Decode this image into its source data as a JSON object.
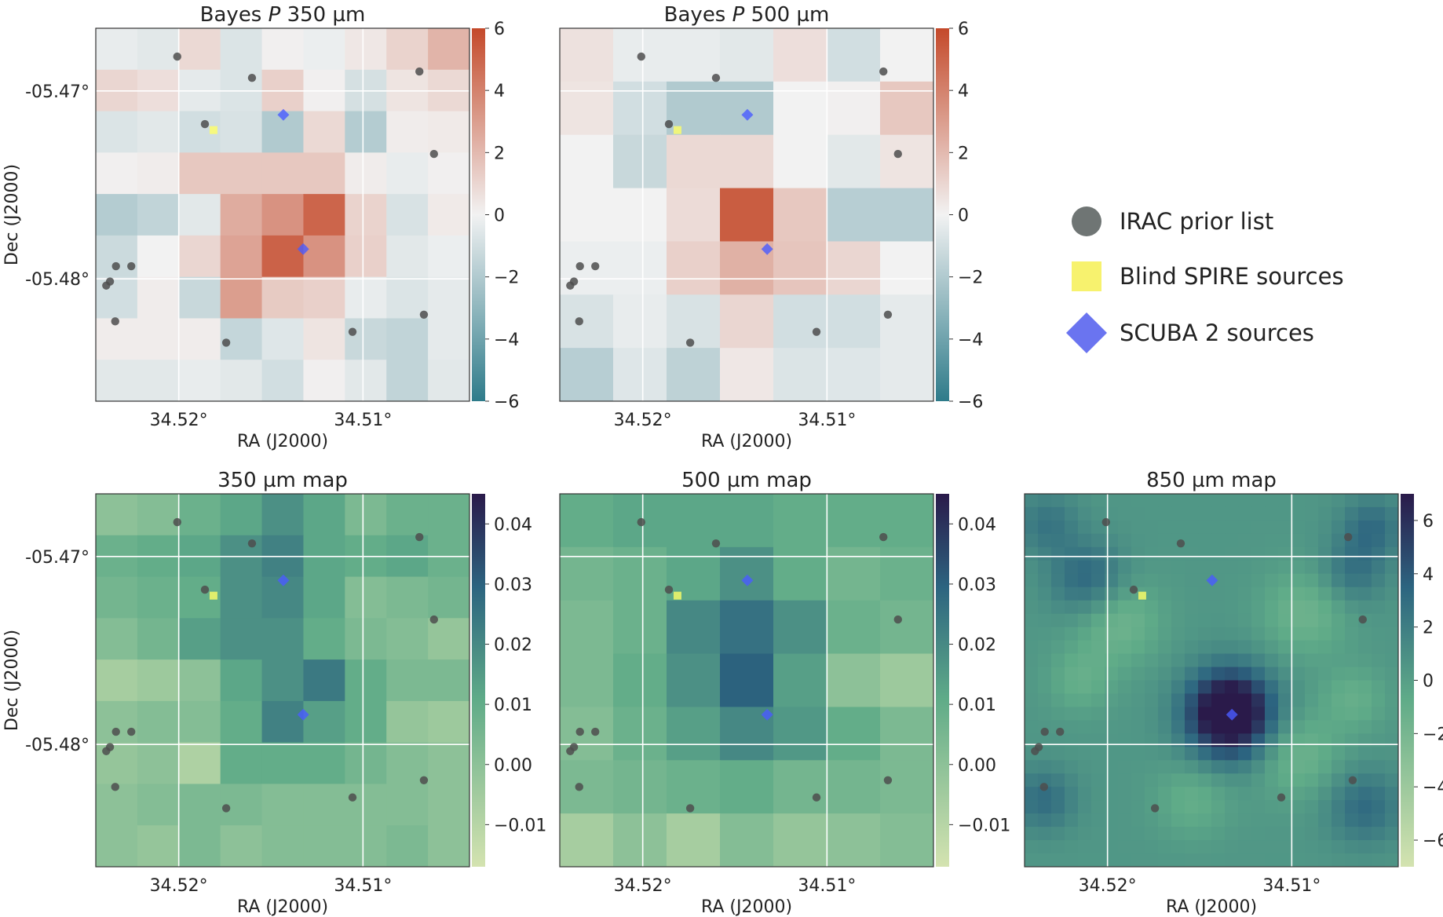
{
  "figure": {
    "colors": {
      "bayes_low": "#2e7b8a",
      "bayes_mid": "#f2f2f2",
      "bayes_high": "#c4492a",
      "map_low": "#d4e3b0",
      "map_mid": "#5fab88",
      "map_high": "#2a1a4a",
      "irac": "#4d4d4d",
      "spire": "#ffff66",
      "scuba": "#4a5bff"
    }
  },
  "legend": {
    "items": [
      {
        "label": "IRAC prior list",
        "marker": "circle",
        "color": "#6f7574"
      },
      {
        "label": "Blind SPIRE sources",
        "marker": "square",
        "color": "#f7f26e"
      },
      {
        "label": "SCUBA 2 sources",
        "marker": "diamond",
        "color": "#6a74f0"
      }
    ]
  },
  "chart_data": [
    {
      "type": "heatmap",
      "title_prefix": "Bayes ",
      "title_italic": "P",
      "title_suffix": " 350 µm",
      "xlabel": "RA (J2000)",
      "ylabel": "Dec (J2000)",
      "xticks": [
        "34.52°",
        "34.51°"
      ],
      "yticks": [
        "-05.47°",
        "-05.48°"
      ],
      "colormap": "bayes",
      "color_range": [
        -6,
        6
      ],
      "colorbar_ticks": [
        "6",
        "4",
        "2",
        "0",
        "−2",
        "−4",
        "−6"
      ],
      "grid": [
        [
          -0.3,
          -0.5,
          0.9,
          -0.7,
          0.1,
          -0.2,
          0.4,
          1.1,
          2.2
        ],
        [
          1.0,
          0.7,
          -0.4,
          -0.7,
          1.2,
          0.1,
          -0.9,
          0.5,
          0.9
        ],
        [
          -0.7,
          -0.5,
          -1.0,
          -0.8,
          -2.0,
          0.9,
          -1.9,
          0.2,
          0.3
        ],
        [
          0.1,
          0.2,
          1.5,
          1.5,
          1.5,
          1.5,
          0.2,
          -0.3,
          0.1
        ],
        [
          -1.9,
          -1.5,
          -0.5,
          2.5,
          3.4,
          5.0,
          1.1,
          -0.8,
          0.3
        ],
        [
          -1.2,
          0.0,
          1.0,
          2.8,
          5.1,
          3.4,
          1.2,
          -0.5,
          -0.2
        ],
        [
          -1.0,
          0.2,
          -1.3,
          3.0,
          1.4,
          1.2,
          -0.3,
          -0.7,
          -0.4
        ],
        [
          0.2,
          0.2,
          0.2,
          -1.4,
          -0.6,
          0.5,
          -1.3,
          -1.5,
          -0.4
        ],
        [
          -0.5,
          -0.5,
          -0.3,
          -0.5,
          -1.0,
          0.1,
          -0.5,
          -1.5,
          -0.5
        ]
      ]
    },
    {
      "type": "heatmap",
      "title_prefix": "Bayes ",
      "title_italic": "P",
      "title_suffix": " 500 µm",
      "xlabel": "RA (J2000)",
      "ylabel": "",
      "xticks": [
        "34.52°",
        "34.51°"
      ],
      "yticks": [],
      "colormap": "bayes",
      "color_range": [
        -6,
        6
      ],
      "colorbar_ticks": [
        "6",
        "4",
        "2",
        "0",
        "−2",
        "−4",
        "−6"
      ],
      "grid": [
        [
          0.6,
          -0.3,
          -0.3,
          -0.5,
          0.7,
          -1.0,
          0.0
        ],
        [
          0.5,
          -1.0,
          -2.0,
          -2.0,
          0.0,
          0.1,
          1.5
        ],
        [
          0.0,
          -1.3,
          0.9,
          0.9,
          0.0,
          -0.5,
          0.5
        ],
        [
          0.0,
          0.0,
          0.8,
          5.3,
          1.5,
          -1.8,
          -1.8
        ],
        [
          -0.2,
          -0.2,
          1.2,
          2.3,
          1.6,
          1.0,
          0.0
        ],
        [
          -0.8,
          -0.3,
          -0.8,
          1.0,
          -1.0,
          -1.0,
          -0.4
        ],
        [
          -1.8,
          -0.6,
          -1.6,
          0.4,
          -0.7,
          -0.6,
          -0.4
        ]
      ]
    },
    {
      "type": "heatmap",
      "title": "350 µm map",
      "xlabel": "RA (J2000)",
      "ylabel": "Dec (J2000)",
      "xticks": [
        "34.52°",
        "34.51°"
      ],
      "yticks": [
        "-05.47°",
        "-05.48°"
      ],
      "colormap": "map",
      "color_range": [
        -0.017,
        0.045
      ],
      "colorbar_ticks": [
        "0.04",
        "0.03",
        "0.02",
        "0.01",
        "0.00",
        "−0.01"
      ],
      "grid": [
        [
          0.0,
          0.002,
          0.008,
          0.012,
          0.018,
          0.012,
          0.004,
          0.008,
          0.008
        ],
        [
          0.008,
          0.01,
          0.012,
          0.018,
          0.022,
          0.012,
          0.01,
          0.012,
          0.008
        ],
        [
          0.006,
          0.008,
          0.01,
          0.018,
          0.02,
          0.012,
          0.002,
          0.004,
          0.006
        ],
        [
          0.002,
          0.006,
          0.014,
          0.018,
          0.018,
          0.01,
          0.004,
          0.002,
          -0.002
        ],
        [
          -0.006,
          -0.004,
          0.0,
          0.012,
          0.018,
          0.024,
          0.01,
          0.004,
          0.004
        ],
        [
          0.0,
          0.002,
          0.002,
          0.01,
          0.022,
          0.014,
          0.01,
          -0.002,
          -0.004
        ],
        [
          -0.002,
          0.0,
          -0.008,
          0.01,
          0.01,
          0.01,
          0.006,
          0.002,
          0.0
        ],
        [
          0.0,
          0.002,
          0.004,
          0.004,
          0.002,
          0.002,
          0.002,
          0.002,
          0.0
        ],
        [
          0.0,
          -0.002,
          0.004,
          0.0,
          0.002,
          0.002,
          0.002,
          0.004,
          0.0
        ]
      ]
    },
    {
      "type": "heatmap",
      "title": "500 µm map",
      "xlabel": "RA (J2000)",
      "ylabel": "",
      "xticks": [
        "34.52°",
        "34.51°"
      ],
      "yticks": [],
      "colormap": "map",
      "color_range": [
        -0.017,
        0.045
      ],
      "colorbar_ticks": [
        "0.04",
        "0.03",
        "0.02",
        "0.01",
        "0.00",
        "−0.01"
      ],
      "grid": [
        [
          0.01,
          0.012,
          0.012,
          0.012,
          0.01,
          0.01,
          0.01
        ],
        [
          0.006,
          0.008,
          0.012,
          0.018,
          0.01,
          0.006,
          0.008
        ],
        [
          0.004,
          0.008,
          0.02,
          0.026,
          0.018,
          0.008,
          0.006
        ],
        [
          0.004,
          0.01,
          0.018,
          0.03,
          0.014,
          0.0,
          -0.004
        ],
        [
          0.002,
          0.008,
          0.014,
          0.02,
          0.016,
          0.01,
          0.004
        ],
        [
          0.004,
          0.006,
          0.008,
          0.01,
          0.006,
          0.006,
          0.004
        ],
        [
          -0.006,
          0.0,
          -0.006,
          0.002,
          -0.002,
          0.0,
          0.002
        ]
      ]
    },
    {
      "type": "heatmap",
      "title": "850 µm map",
      "xlabel": "RA (J2000)",
      "ylabel": "",
      "xticks": [
        "34.52°",
        "34.51°"
      ],
      "yticks": [],
      "colormap": "map",
      "color_range": [
        -7,
        7
      ],
      "colorbar_ticks": [
        "6",
        "4",
        "2",
        "0",
        "−2",
        "−4",
        "−6"
      ],
      "blobs": [
        {
          "x": 0.23,
          "y": 0.53,
          "amp": 9.5,
          "sigma": 0.08
        },
        {
          "x": 0.17,
          "y": 0.23,
          "amp": 3.0,
          "sigma": 0.07
        },
        {
          "x": 0.06,
          "y": 0.08,
          "amp": 2.0,
          "sigma": 0.06
        },
        {
          "x": 0.93,
          "y": 0.09,
          "amp": 2.5,
          "sigma": 0.06
        },
        {
          "x": 0.88,
          "y": 0.21,
          "amp": 2.2,
          "sigma": 0.06
        },
        {
          "x": 0.91,
          "y": 0.84,
          "amp": 2.6,
          "sigma": 0.07
        },
        {
          "x": 0.05,
          "y": 0.82,
          "amp": 2.5,
          "sigma": 0.06
        },
        {
          "x": 0.25,
          "y": 0.34,
          "amp": -2.2,
          "sigma": 0.08
        },
        {
          "x": 0.75,
          "y": 0.32,
          "amp": -2.0,
          "sigma": 0.08
        },
        {
          "x": 0.73,
          "y": 0.7,
          "amp": -2.0,
          "sigma": 0.08
        },
        {
          "x": 0.45,
          "y": 0.82,
          "amp": -1.5,
          "sigma": 0.07
        },
        {
          "x": 0.15,
          "y": 0.5,
          "amp": -1.5,
          "sigma": 0.06
        },
        {
          "x": 0.88,
          "y": 0.55,
          "amp": -1.5,
          "sigma": 0.06
        }
      ],
      "base_level": 0.5,
      "peak_position": [
        0.55,
        0.59
      ],
      "pixels": 28
    }
  ],
  "sources": {
    "irac": [
      [
        0.218,
        0.076
      ],
      [
        0.054,
        0.638
      ],
      [
        0.095,
        0.638
      ],
      [
        0.418,
        0.133
      ],
      [
        0.028,
        0.69
      ],
      [
        0.052,
        0.786
      ],
      [
        0.866,
        0.116
      ],
      [
        0.905,
        0.337
      ],
      [
        0.878,
        0.768
      ],
      [
        0.292,
        0.257
      ],
      [
        0.687,
        0.814
      ],
      [
        0.349,
        0.843
      ],
      [
        0.038,
        0.679
      ]
    ],
    "spire": [
      [
        0.315,
        0.273
      ]
    ],
    "scuba": [
      [
        0.502,
        0.232
      ],
      [
        0.555,
        0.592
      ]
    ]
  }
}
